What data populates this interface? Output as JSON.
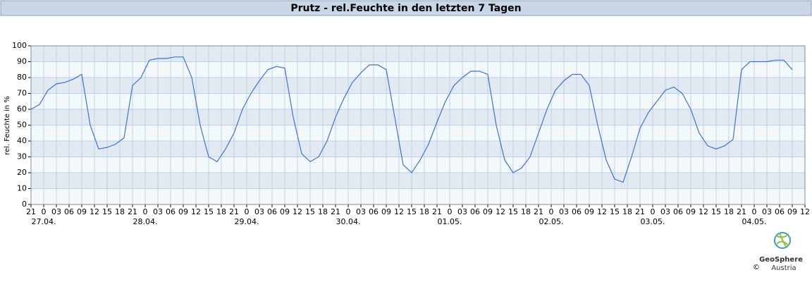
{
  "chart_data": {
    "type": "line",
    "title": "Prutz - rel.Feuchte in den letzten 7 Tagen",
    "y_label": "rel. Feuchte in %",
    "x": [
      0,
      2,
      4,
      6,
      8,
      10,
      12,
      14,
      16,
      18,
      20,
      22,
      24,
      26,
      28,
      30,
      32,
      34,
      36,
      38,
      40,
      42,
      44,
      46,
      48,
      50,
      52,
      54,
      56,
      58,
      60,
      62,
      64,
      66,
      68,
      70,
      72,
      74,
      76,
      78,
      80,
      82,
      84,
      86,
      88,
      90,
      92,
      94,
      96,
      98,
      100,
      102,
      104,
      106,
      108,
      110,
      112,
      114,
      116,
      118,
      120,
      122,
      124,
      126,
      128,
      130,
      132,
      134,
      136,
      138,
      140,
      142,
      144,
      146,
      148,
      150,
      152,
      154,
      156,
      158,
      160,
      162,
      164,
      166,
      168,
      170,
      172,
      174,
      176,
      178,
      180
    ],
    "series": [
      {
        "name": "rel. Feuchte",
        "color": "#3f70d9",
        "values": [
          60,
          63,
          72,
          76,
          77,
          79,
          82,
          50,
          35,
          36,
          38,
          42,
          75,
          80,
          91,
          92,
          92,
          93,
          93,
          80,
          50,
          30,
          27,
          35,
          45,
          60,
          70,
          78,
          85,
          87,
          86,
          55,
          32,
          27,
          30,
          40,
          55,
          67,
          77,
          83,
          88,
          88,
          85,
          55,
          25,
          20,
          28,
          38,
          52,
          65,
          75,
          80,
          84,
          84,
          82,
          50,
          28,
          20,
          23,
          30,
          45,
          60,
          72,
          78,
          82,
          82,
          75,
          50,
          28,
          16,
          14,
          30,
          48,
          58,
          65,
          72,
          74,
          70,
          60,
          45,
          37,
          35,
          37,
          41,
          85,
          90,
          90,
          90,
          91,
          91,
          85
        ]
      }
    ],
    "xlim": [
      0,
      183
    ],
    "xticks": [
      {
        "value": 0,
        "label": "21"
      },
      {
        "value": 3,
        "label": "0"
      },
      {
        "value": 6,
        "label": "03"
      },
      {
        "value": 9,
        "label": "06"
      },
      {
        "value": 12,
        "label": "09"
      },
      {
        "value": 15,
        "label": "12"
      },
      {
        "value": 18,
        "label": "15"
      },
      {
        "value": 21,
        "label": "18"
      },
      {
        "value": 24,
        "label": "21"
      },
      {
        "value": 27,
        "label": "0"
      },
      {
        "value": 30,
        "label": "03"
      },
      {
        "value": 33,
        "label": "06"
      },
      {
        "value": 36,
        "label": "09"
      },
      {
        "value": 39,
        "label": "12"
      },
      {
        "value": 42,
        "label": "15"
      },
      {
        "value": 45,
        "label": "18"
      },
      {
        "value": 48,
        "label": "21"
      },
      {
        "value": 51,
        "label": "0"
      },
      {
        "value": 54,
        "label": "03"
      },
      {
        "value": 57,
        "label": "06"
      },
      {
        "value": 60,
        "label": "09"
      },
      {
        "value": 63,
        "label": "12"
      },
      {
        "value": 66,
        "label": "15"
      },
      {
        "value": 69,
        "label": "18"
      },
      {
        "value": 72,
        "label": "21"
      },
      {
        "value": 75,
        "label": "0"
      },
      {
        "value": 78,
        "label": "03"
      },
      {
        "value": 81,
        "label": "06"
      },
      {
        "value": 84,
        "label": "09"
      },
      {
        "value": 87,
        "label": "12"
      },
      {
        "value": 90,
        "label": "15"
      },
      {
        "value": 93,
        "label": "18"
      },
      {
        "value": 96,
        "label": "21"
      },
      {
        "value": 99,
        "label": "0"
      },
      {
        "value": 102,
        "label": "03"
      },
      {
        "value": 105,
        "label": "06"
      },
      {
        "value": 108,
        "label": "09"
      },
      {
        "value": 111,
        "label": "12"
      },
      {
        "value": 114,
        "label": "15"
      },
      {
        "value": 117,
        "label": "18"
      },
      {
        "value": 120,
        "label": "21"
      },
      {
        "value": 123,
        "label": "0"
      },
      {
        "value": 126,
        "label": "03"
      },
      {
        "value": 129,
        "label": "06"
      },
      {
        "value": 132,
        "label": "09"
      },
      {
        "value": 135,
        "label": "12"
      },
      {
        "value": 138,
        "label": "15"
      },
      {
        "value": 141,
        "label": "18"
      },
      {
        "value": 144,
        "label": "21"
      },
      {
        "value": 147,
        "label": "0"
      },
      {
        "value": 150,
        "label": "03"
      },
      {
        "value": 153,
        "label": "06"
      },
      {
        "value": 156,
        "label": "09"
      },
      {
        "value": 159,
        "label": "12"
      },
      {
        "value": 162,
        "label": "15"
      },
      {
        "value": 165,
        "label": "18"
      },
      {
        "value": 168,
        "label": "21"
      },
      {
        "value": 171,
        "label": "0"
      },
      {
        "value": 174,
        "label": "03"
      },
      {
        "value": 177,
        "label": "06"
      },
      {
        "value": 180,
        "label": "09"
      },
      {
        "value": 183,
        "label": "12"
      }
    ],
    "x_date_labels": [
      {
        "value": 3,
        "label": "27.04."
      },
      {
        "value": 27,
        "label": "28.04."
      },
      {
        "value": 51,
        "label": "29.04."
      },
      {
        "value": 75,
        "label": "30.04."
      },
      {
        "value": 99,
        "label": "01.05."
      },
      {
        "value": 123,
        "label": "02.05."
      },
      {
        "value": 147,
        "label": "03.05."
      },
      {
        "value": 171,
        "label": "04.05."
      }
    ],
    "ylim": [
      0,
      100
    ],
    "yticks": [
      0,
      10,
      20,
      30,
      40,
      50,
      60,
      70,
      80,
      90,
      100
    ],
    "grid": true,
    "logo": {
      "name": "GeoSphere",
      "country": "Austria",
      "copyright": "©"
    }
  }
}
